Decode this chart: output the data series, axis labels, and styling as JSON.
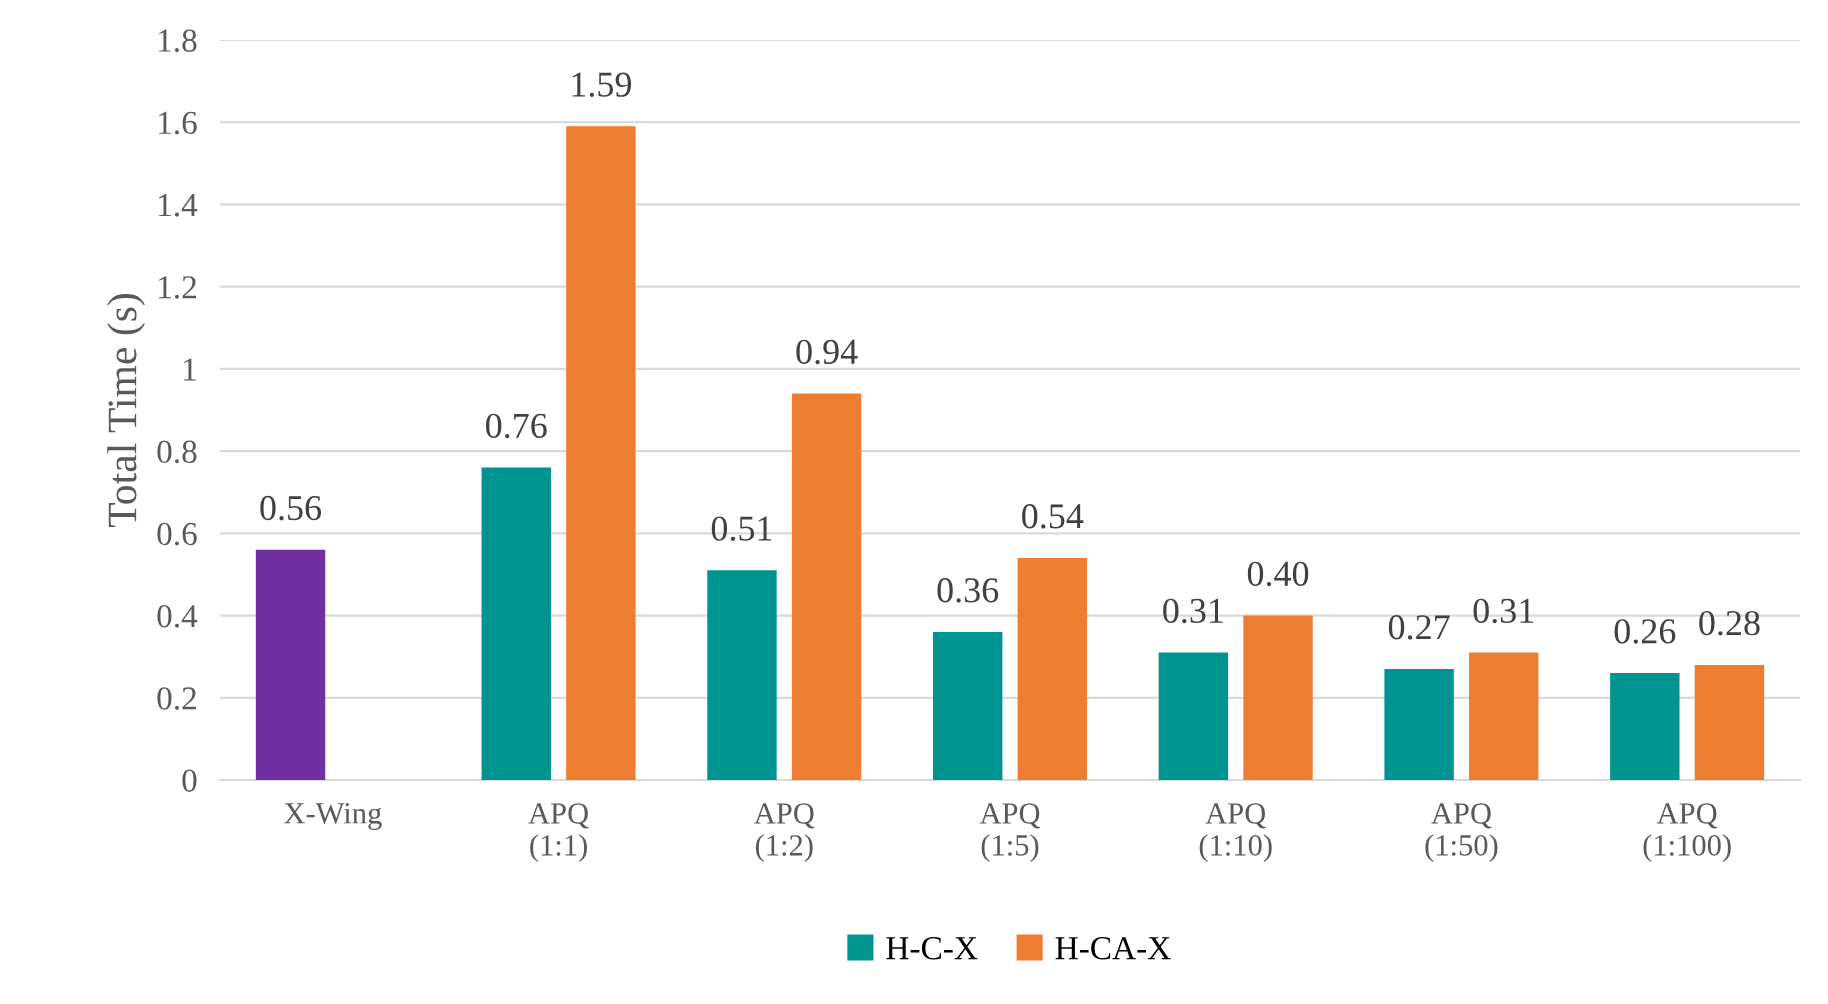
{
  "chart_data": {
    "type": "bar",
    "ylabel": "Total Time (s)",
    "categories": [
      "X-Wing",
      "APQ\n(1:1)",
      "APQ\n(1:2)",
      "APQ\n(1:5)",
      "APQ\n(1:10)",
      "APQ\n(1:50)",
      "APQ\n(1:100)"
    ],
    "series": [
      {
        "name": "H-C-X",
        "color": "#009490",
        "colors": [
          "#7030a0",
          "#009490",
          "#009490",
          "#009490",
          "#009490",
          "#009490",
          "#009490"
        ],
        "values": [
          0.56,
          0.76,
          0.51,
          0.36,
          0.31,
          0.27,
          0.26
        ],
        "value_labels": [
          "0.56",
          "0.76",
          "0.51",
          "0.36",
          "0.31",
          "0.27",
          "0.26"
        ]
      },
      {
        "name": "H-CA-X",
        "color": "#ed7d31",
        "values": [
          null,
          1.59,
          0.94,
          0.54,
          0.4,
          0.31,
          0.28
        ],
        "value_labels": [
          null,
          "1.59",
          "0.94",
          "0.54",
          "0.40",
          "0.31",
          "0.28"
        ]
      }
    ],
    "ylim": [
      0,
      1.8
    ],
    "yticks": [
      0,
      0.2,
      0.4,
      0.6,
      0.8,
      1,
      1.2,
      1.4,
      1.6,
      1.8
    ],
    "grid": "y",
    "legend": "bottom"
  }
}
